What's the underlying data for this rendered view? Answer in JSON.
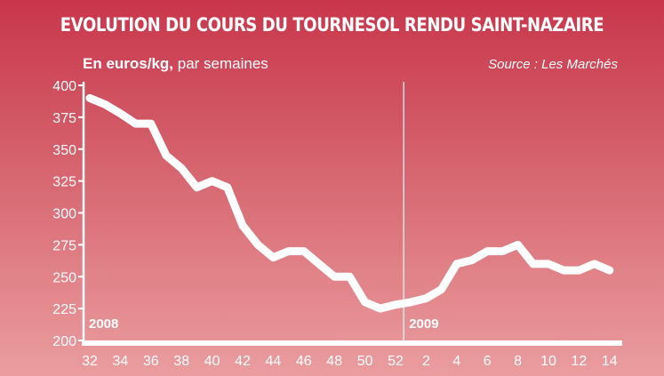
{
  "title": "EVOLUTION DU COURS DU TOURNESOL RENDU SAINT-NAZAIRE",
  "subtitle_bold": "En euros/kg,",
  "subtitle_rest": " par semaines",
  "source": "Source : Les Marchés",
  "colors": {
    "background_top": "#c9364b",
    "background_bottom": "#ea9d9f",
    "line": "#ffffff",
    "axis_band": "#ffffff"
  },
  "chart_data": {
    "type": "line",
    "title": "EVOLUTION DU COURS DU TOURNESOL RENDU SAINT-NAZAIRE",
    "ylabel": "En euros/kg, par semaines",
    "ylim": [
      200,
      400
    ],
    "yticks": [
      "200",
      "225",
      "250",
      "275",
      "300",
      "325",
      "350",
      "375",
      "400"
    ],
    "xtick_labels": [
      "32",
      "34",
      "36",
      "38",
      "40",
      "42",
      "44",
      "46",
      "48",
      "50",
      "52",
      "2",
      "4",
      "6",
      "8",
      "10",
      "12",
      "14"
    ],
    "year_labels": [
      "2008",
      "2009"
    ],
    "grid": false,
    "series": [
      {
        "x": [
          "32",
          "33",
          "34",
          "35",
          "36",
          "37",
          "38",
          "39",
          "40",
          "41",
          "42",
          "43",
          "44",
          "45",
          "46",
          "47",
          "48",
          "49",
          "50",
          "51",
          "52",
          "1",
          "2",
          "3",
          "4",
          "5",
          "6",
          "7",
          "8",
          "9",
          "10",
          "11",
          "12",
          "13",
          "14"
        ],
        "values": [
          390,
          385,
          378,
          370,
          370,
          345,
          335,
          320,
          325,
          320,
          290,
          275,
          265,
          270,
          270,
          260,
          250,
          250,
          230,
          225,
          228,
          230,
          233,
          240,
          260,
          263,
          270,
          270,
          275,
          260,
          260,
          255,
          255,
          260,
          255
        ]
      }
    ]
  }
}
